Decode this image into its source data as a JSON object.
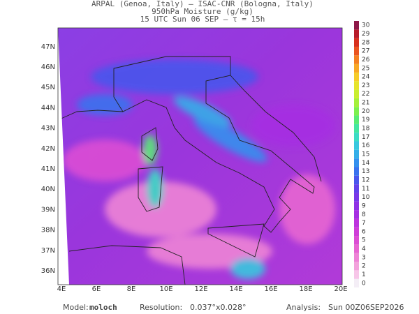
{
  "header": {
    "line1": "ARPAL (Genoa, Italy)  —  ISAC-CNR (Bologna, Italy)",
    "line2": "950hPa Moisture (g/kg)",
    "line3": "15 UTC Sun 06 SEP  —  τ = 15h"
  },
  "map": {
    "lat_labels": [
      "36N",
      "37N",
      "38N",
      "39N",
      "40N",
      "41N",
      "42N",
      "43N",
      "44N",
      "45N",
      "46N",
      "47N"
    ],
    "lon_labels": [
      "4E",
      "6E",
      "8E",
      "10E",
      "12E",
      "14E",
      "16E",
      "18E",
      "20E"
    ]
  },
  "colorbar": {
    "ticks": [
      0,
      1,
      2,
      3,
      4,
      5,
      6,
      7,
      8,
      9,
      10,
      11,
      12,
      13,
      14,
      15,
      16,
      17,
      18,
      19,
      20,
      21,
      22,
      23,
      24,
      25,
      26,
      27,
      28,
      29,
      30
    ],
    "colors": [
      "#f4eef6",
      "#f7c6e8",
      "#f3a2dc",
      "#ee84d6",
      "#e766d2",
      "#dc4ed4",
      "#cf3ed8",
      "#bd34de",
      "#a62fe2",
      "#8f32e6",
      "#7838e8",
      "#6242ea",
      "#4a56ec",
      "#3a72ee",
      "#3490ee",
      "#34aee8",
      "#38c8de",
      "#3cdcc4",
      "#44e6a0",
      "#58ec74",
      "#7cf04e",
      "#a4f03a",
      "#c8ee30",
      "#e6e42c",
      "#f6cc2a",
      "#f8a826",
      "#f48022",
      "#ea5420",
      "#d8301e",
      "#b81c2a",
      "#8e1848"
    ]
  },
  "footer": {
    "model_label": "Model:",
    "model": "moloch",
    "resolution_label": "Resolution:",
    "resolution": "0.037°x0.028°",
    "analysis_label": "Analysis:",
    "analysis": "Sun 00Z06SEP2026"
  }
}
